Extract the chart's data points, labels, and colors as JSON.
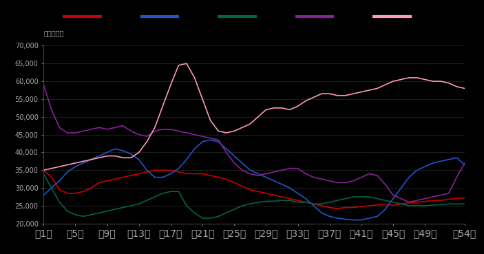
{
  "background_color": "#000000",
  "text_color": "#aaaaaa",
  "unit_label": "单位：千辆",
  "ylim": [
    20000,
    70000
  ],
  "yticks": [
    20000,
    25000,
    30000,
    35000,
    40000,
    45000,
    50000,
    55000,
    60000,
    65000,
    70000
  ],
  "xtick_labels": [
    "第1周",
    "第5周",
    "第9周",
    "第13周",
    "第17周",
    "第21周",
    "第25周",
    "第29周",
    "第33周",
    "第37周",
    "第41周",
    "第45周",
    "第49周",
    "第54周"
  ],
  "xtick_positions": [
    0,
    4,
    8,
    12,
    16,
    20,
    24,
    28,
    32,
    36,
    40,
    44,
    48,
    53
  ],
  "line_colors": [
    "#cc0000",
    "#2255cc",
    "#006644",
    "#882299",
    "#ff99bb"
  ],
  "series": {
    "red": [
      35000,
      33000,
      29500,
      28500,
      28500,
      29000,
      30000,
      31500,
      32000,
      32500,
      33000,
      33500,
      34000,
      34500,
      35000,
      35000,
      35000,
      34500,
      34000,
      34000,
      34000,
      33500,
      33000,
      32500,
      31500,
      30500,
      29500,
      29000,
      28500,
      28000,
      27500,
      27000,
      26500,
      26000,
      25500,
      25000,
      24500,
      24200,
      24500,
      24500,
      24800,
      25000,
      25200,
      25300,
      25200,
      25500,
      25800,
      26000,
      26200,
      26500,
      26500,
      26800,
      27000,
      27200
    ],
    "blue": [
      28000,
      30000,
      32000,
      34500,
      36000,
      37000,
      38000,
      39000,
      40000,
      41000,
      40500,
      39500,
      38000,
      35000,
      33000,
      33000,
      34000,
      35500,
      38000,
      41000,
      43000,
      43500,
      43000,
      41000,
      39000,
      37000,
      35000,
      34000,
      33000,
      32000,
      31000,
      30000,
      28500,
      27000,
      25000,
      23000,
      22000,
      21500,
      21200,
      21000,
      21000,
      21500,
      22000,
      24000,
      27000,
      30000,
      33000,
      35000,
      36000,
      37000,
      37500,
      38000,
      38500,
      36500
    ],
    "green": [
      34000,
      30000,
      26000,
      23500,
      22500,
      22000,
      22500,
      23000,
      23500,
      24000,
      24500,
      25000,
      25500,
      26500,
      27500,
      28500,
      29000,
      29000,
      25000,
      23000,
      21500,
      21500,
      22000,
      23000,
      24000,
      25000,
      25500,
      26000,
      26200,
      26300,
      26500,
      26500,
      26000,
      26000,
      25500,
      25500,
      26000,
      26500,
      27000,
      27500,
      27500,
      27500,
      27000,
      26500,
      26000,
      25500,
      25000,
      25000,
      25000,
      25200,
      25300,
      25500,
      25500,
      25500
    ],
    "purple": [
      59000,
      52000,
      47000,
      45500,
      45500,
      46000,
      46500,
      47000,
      46500,
      47000,
      47500,
      46000,
      45000,
      44500,
      46000,
      46500,
      46500,
      46000,
      45500,
      45000,
      44500,
      44000,
      43500,
      40000,
      37000,
      35000,
      34000,
      33500,
      34000,
      34500,
      35000,
      35500,
      35500,
      34000,
      33000,
      32500,
      32000,
      31500,
      31500,
      32000,
      33000,
      34000,
      33500,
      31000,
      28000,
      27000,
      26000,
      26500,
      27000,
      27500,
      28000,
      28500,
      33000,
      37000
    ],
    "pink": [
      35000,
      35500,
      36000,
      36500,
      37000,
      37500,
      38000,
      38500,
      39000,
      39000,
      38500,
      38500,
      40000,
      43000,
      47000,
      53000,
      59000,
      64500,
      65000,
      61000,
      55000,
      49000,
      46000,
      45500,
      46000,
      47000,
      48000,
      50000,
      52000,
      52500,
      52500,
      52000,
      53000,
      54500,
      55500,
      56500,
      56500,
      56000,
      56000,
      56500,
      57000,
      57500,
      58000,
      59000,
      60000,
      60500,
      61000,
      61000,
      60500,
      60000,
      60000,
      59500,
      58500,
      58000
    ]
  }
}
